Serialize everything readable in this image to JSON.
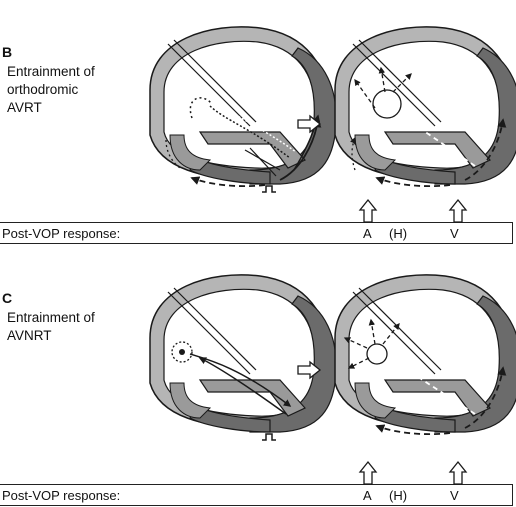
{
  "panels": [
    {
      "letter": "B",
      "caption": [
        "Entrainment of",
        "orthodromic",
        "AVRT"
      ],
      "response": {
        "label": "Post-VOP response:",
        "marks": [
          "A",
          "(H)",
          "V"
        ]
      }
    },
    {
      "letter": "C",
      "caption": [
        "Entrainment of",
        "AVNRT"
      ],
      "response": {
        "label": "Post-VOP response:",
        "marks": [
          "A",
          "(H)",
          "V"
        ]
      }
    }
  ],
  "colors": {
    "wall": "#b5b5b5",
    "ventricle": "#6b6b6b",
    "line": "#1a1a1a"
  }
}
